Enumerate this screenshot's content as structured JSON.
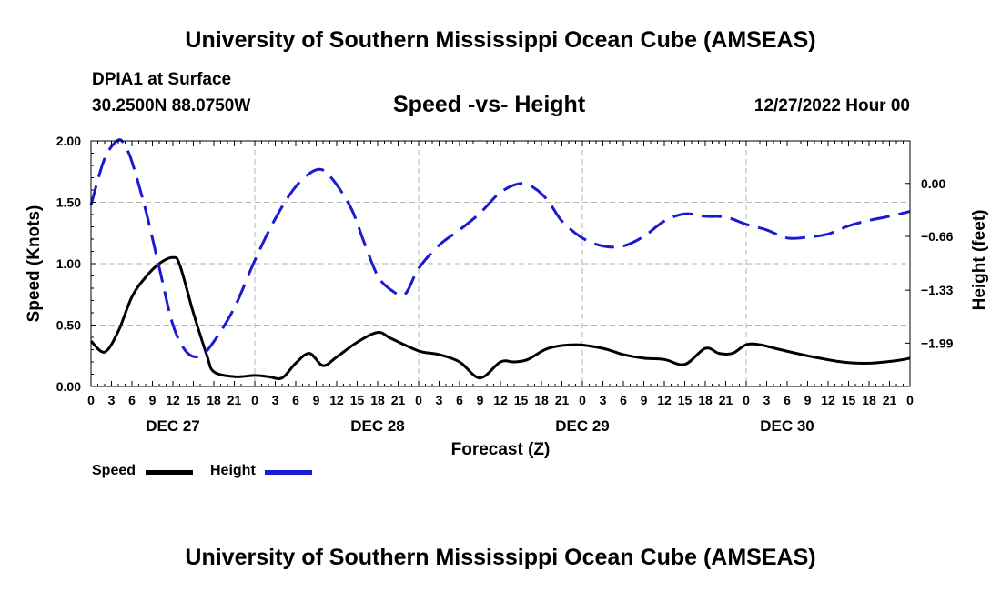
{
  "header": {
    "title": "University of Southern Mississippi Ocean Cube (AMSEAS)",
    "station": "DPIA1 at Surface",
    "coords": "30.2500N  88.0750W",
    "chart_title": "Speed -vs- Height",
    "run_date": "12/27/2022 Hour 00"
  },
  "footer": {
    "title": "University of Southern Mississippi Ocean Cube (AMSEAS)"
  },
  "legend": {
    "speed_label": "Speed",
    "height_label": "Height"
  },
  "colors": {
    "speed": "#000000",
    "height": "#1a1ad0",
    "grid": "#b4b4b4"
  },
  "chart_data": {
    "type": "line",
    "title": "Speed -vs- Height",
    "xlabel": "Forecast (Z)",
    "ylabel": "Speed (Knots)",
    "y2label": "Height (feet)",
    "xlim": [
      0,
      120
    ],
    "ylim": [
      0,
      2
    ],
    "y2lim": [
      -2.53,
      0.53
    ],
    "x_ticks": [
      0,
      3,
      6,
      9,
      12,
      15,
      18,
      21,
      24,
      27,
      30,
      33,
      36,
      39,
      42,
      45,
      48,
      51,
      54,
      57,
      60,
      63,
      66,
      69,
      72,
      75,
      78,
      81,
      84,
      87,
      90,
      93,
      96,
      99,
      102,
      105,
      108,
      111,
      114,
      117,
      120
    ],
    "x_tick_labels": [
      "0",
      "3",
      "6",
      "9",
      "12",
      "15",
      "18",
      "21",
      "0",
      "3",
      "6",
      "9",
      "12",
      "15",
      "18",
      "21",
      "0",
      "3",
      "6",
      "9",
      "12",
      "15",
      "18",
      "21",
      "0",
      "3",
      "6",
      "9",
      "12",
      "15",
      "18",
      "21",
      "0",
      "3",
      "6",
      "9",
      "12",
      "15",
      "18",
      "21",
      "0"
    ],
    "date_labels": [
      {
        "x": 12,
        "label": "DEC 27"
      },
      {
        "x": 42,
        "label": "DEC 28"
      },
      {
        "x": 72,
        "label": "DEC 29"
      },
      {
        "x": 102,
        "label": "DEC 30"
      }
    ],
    "y_ticks": [
      0,
      0.5,
      1,
      1.5,
      2
    ],
    "y_tick_labels": [
      "0.00",
      "0.50",
      "1.00",
      "1.50",
      "2.00"
    ],
    "y2_ticks": [
      0,
      -0.66,
      -1.33,
      -1.99
    ],
    "y2_tick_labels": [
      "0.00",
      "−0.66",
      "−1.33",
      "−1.99"
    ],
    "series": [
      {
        "name": "Speed",
        "axis": "left",
        "style": "solid",
        "x": [
          0,
          2,
          4,
          6,
          8,
          10,
          12,
          13,
          15,
          17,
          18,
          21,
          24,
          26,
          28,
          30,
          32,
          34,
          36,
          39,
          42,
          44,
          48,
          51,
          54,
          57,
          60,
          62,
          64,
          67,
          71,
          75,
          78,
          81,
          84,
          87,
          90,
          92,
          94,
          96,
          98,
          101,
          105,
          110,
          114,
          118,
          120
        ],
        "y": [
          0.37,
          0.28,
          0.45,
          0.73,
          0.89,
          1.0,
          1.05,
          0.99,
          0.6,
          0.25,
          0.12,
          0.08,
          0.09,
          0.08,
          0.07,
          0.19,
          0.27,
          0.17,
          0.24,
          0.36,
          0.44,
          0.39,
          0.29,
          0.26,
          0.2,
          0.07,
          0.2,
          0.2,
          0.22,
          0.31,
          0.34,
          0.31,
          0.26,
          0.23,
          0.22,
          0.18,
          0.31,
          0.27,
          0.27,
          0.34,
          0.34,
          0.3,
          0.25,
          0.2,
          0.19,
          0.21,
          0.23
        ]
      },
      {
        "name": "Height",
        "axis": "right",
        "style": "dashed",
        "x": [
          0,
          2,
          4,
          5,
          6,
          8,
          10,
          12,
          14,
          16,
          18,
          21,
          24,
          27,
          30,
          33,
          35,
          38,
          40,
          42,
          44,
          46,
          48,
          51,
          54,
          57,
          60,
          63,
          65,
          67,
          69,
          72,
          75,
          78,
          81,
          84,
          87,
          90,
          93,
          96,
          99,
          102,
          105,
          108,
          111,
          114,
          117,
          120
        ],
        "y": [
          -0.27,
          0.31,
          0.54,
          0.46,
          0.27,
          -0.33,
          -1.05,
          -1.76,
          -2.1,
          -2.15,
          -1.97,
          -1.55,
          -0.96,
          -0.44,
          -0.04,
          0.17,
          0.09,
          -0.29,
          -0.73,
          -1.15,
          -1.33,
          -1.38,
          -1.06,
          -0.77,
          -0.58,
          -0.37,
          -0.11,
          0.0,
          -0.06,
          -0.22,
          -0.47,
          -0.68,
          -0.78,
          -0.78,
          -0.66,
          -0.47,
          -0.38,
          -0.41,
          -0.42,
          -0.51,
          -0.58,
          -0.68,
          -0.67,
          -0.63,
          -0.53,
          -0.46,
          -0.41,
          -0.35
        ]
      }
    ]
  }
}
